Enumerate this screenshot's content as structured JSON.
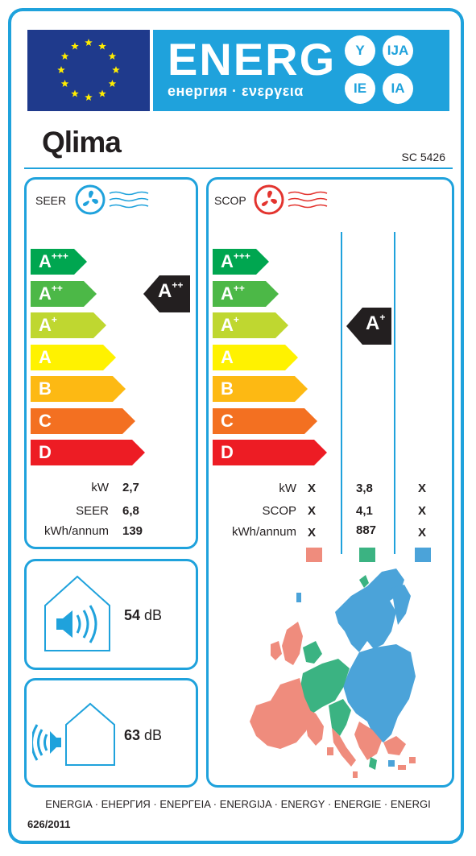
{
  "header": {
    "energ": "ENERG",
    "subtitle": "енергия · ενεργεια",
    "languages": [
      "Y",
      "IJA",
      "IE",
      "IA"
    ]
  },
  "brand": "Qlima",
  "model": "SC 5426",
  "seer": {
    "title": "SEER",
    "scale": [
      {
        "letter": "A",
        "plus": "+++",
        "color": "#00a650"
      },
      {
        "letter": "A",
        "plus": "++",
        "color": "#4cb847"
      },
      {
        "letter": "A",
        "plus": "+",
        "color": "#bfd730"
      },
      {
        "letter": "A",
        "plus": "",
        "color": "#fff200"
      },
      {
        "letter": "B",
        "plus": "",
        "color": "#fdb913"
      },
      {
        "letter": "C",
        "plus": "",
        "color": "#f37021"
      },
      {
        "letter": "D",
        "plus": "",
        "color": "#ed1c24"
      }
    ],
    "rating_letter": "A",
    "rating_plus": "++",
    "rows": [
      {
        "label": "kW",
        "value": "2,7"
      },
      {
        "label": "SEER",
        "value": "6,8"
      },
      {
        "label": "kWh/annum",
        "value": "139"
      }
    ]
  },
  "scop": {
    "title": "SCOP",
    "rating_letter": "A",
    "rating_plus": "+",
    "rows": [
      {
        "label": "kW",
        "values": [
          "X",
          "3,8",
          "X"
        ]
      },
      {
        "label": "SCOP",
        "values": [
          "X",
          "4,1",
          "X"
        ]
      },
      {
        "label": "kWh/annum",
        "values": [
          "X",
          "887",
          "X"
        ]
      }
    ],
    "zone_colors": [
      "#ef8c7d",
      "#3bb382",
      "#4ba3d9"
    ]
  },
  "noise_indoor": {
    "value": "54",
    "unit": "dB"
  },
  "noise_outdoor": {
    "value": "63",
    "unit": "dB"
  },
  "footer": "ENERGIA · ЕНЕРГИЯ · ΕΝΕΡΓΕΙΑ · ENERGIJA · ENERGY · ENERGIE · ENERGI",
  "regulation": "626/2011"
}
